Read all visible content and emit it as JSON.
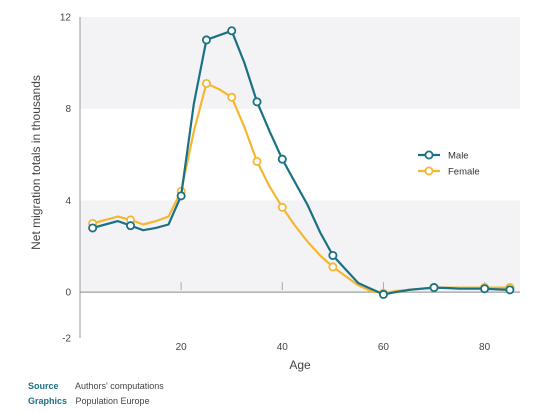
{
  "chart_data": {
    "type": "line",
    "xlabel": "Age",
    "ylabel": "Net migration totals in thousands",
    "xlim": [
      0,
      87
    ],
    "ylim": [
      -2,
      12
    ],
    "xticks": [
      20,
      40,
      60,
      80
    ],
    "yticks": [
      -2,
      0,
      4,
      8,
      12
    ],
    "xtick_labels": [
      "20",
      "40",
      "60",
      "80"
    ],
    "ytick_labels": [
      "-2",
      "0",
      "4",
      "8",
      "12"
    ],
    "legend_position": "right",
    "series": [
      {
        "name": "Male",
        "color": "#1a7184",
        "x": [
          2.5,
          5,
          7.5,
          10,
          12.5,
          15,
          17.5,
          20,
          22.5,
          25,
          27.5,
          30,
          32.5,
          35,
          37.5,
          40,
          42.5,
          45,
          47.5,
          50,
          52.5,
          55,
          57.5,
          60,
          62.5,
          65,
          67.5,
          70,
          72.5,
          75,
          77.5,
          80,
          82.5,
          85
        ],
        "values": [
          2.8,
          2.95,
          3.1,
          2.9,
          2.7,
          2.8,
          2.95,
          4.2,
          8.2,
          11.0,
          11.2,
          11.4,
          10.0,
          8.3,
          7.0,
          5.8,
          4.8,
          3.8,
          2.6,
          1.6,
          1.0,
          0.4,
          0.15,
          -0.1,
          0.0,
          0.1,
          0.15,
          0.2,
          0.18,
          0.15,
          0.15,
          0.15,
          0.12,
          0.1
        ],
        "markers_at": [
          2.5,
          10,
          20,
          25,
          30,
          35,
          40,
          50,
          60,
          70,
          80,
          85
        ]
      },
      {
        "name": "Female",
        "color": "#f5b731",
        "x": [
          2.5,
          5,
          7.5,
          10,
          12.5,
          15,
          17.5,
          20,
          22.5,
          25,
          27.5,
          30,
          32.5,
          35,
          37.5,
          40,
          42.5,
          45,
          47.5,
          50,
          52.5,
          55,
          57.5,
          60,
          62.5,
          65,
          67.5,
          70,
          72.5,
          75,
          77.5,
          80,
          82.5,
          85
        ],
        "values": [
          3.0,
          3.15,
          3.3,
          3.15,
          2.95,
          3.1,
          3.3,
          4.4,
          7.0,
          9.1,
          8.85,
          8.5,
          7.2,
          5.7,
          4.6,
          3.7,
          2.9,
          2.2,
          1.6,
          1.1,
          0.7,
          0.3,
          0.05,
          -0.05,
          0.05,
          0.1,
          0.15,
          0.2,
          0.2,
          0.2,
          0.2,
          0.2,
          0.2,
          0.2
        ],
        "markers_at": [
          2.5,
          10,
          20,
          25,
          30,
          35,
          40,
          50,
          60,
          70,
          80,
          85
        ]
      }
    ]
  },
  "footer": {
    "source_key": "Source",
    "source_value": "Authors' computations",
    "graphics_key": "Graphics",
    "graphics_value": "Population Europe",
    "key_color": "#1a7184"
  }
}
